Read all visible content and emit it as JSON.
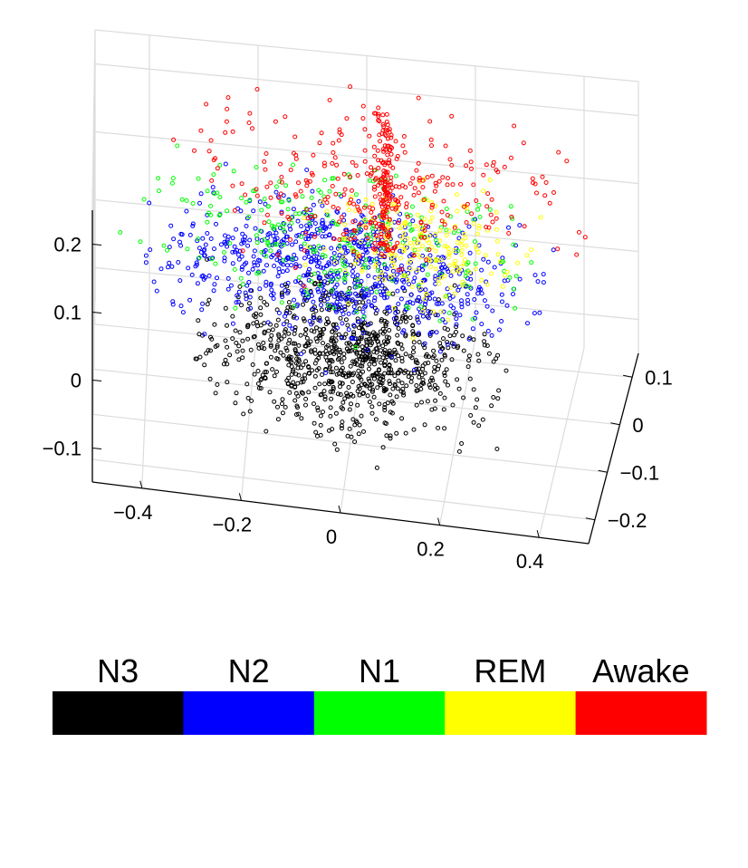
{
  "chart_data": {
    "type": "scatter",
    "dimensions": 3,
    "title": "",
    "xlabel": "",
    "ylabel": "",
    "zlabel": "",
    "grid": true,
    "x_ticks": [
      "−0.4",
      "−0.2",
      "0",
      "0.2",
      "0.4"
    ],
    "y_ticks": [
      "−0.2",
      "−0.1",
      "0",
      "0.1"
    ],
    "z_ticks": [
      "−0.1",
      "0",
      "0.1",
      "0.2"
    ],
    "xlim": [
      -0.5,
      0.5
    ],
    "ylim": [
      -0.25,
      0.15
    ],
    "zlim": [
      -0.15,
      0.25
    ],
    "marker": "open-circle",
    "series": [
      {
        "name": "N3",
        "color": "#000000",
        "x_range": [
          -0.3,
          0.3
        ],
        "y_range": [
          -0.25,
          0.05
        ],
        "z_range": [
          -0.1,
          0.05
        ]
      },
      {
        "name": "N2",
        "color": "#0000ff",
        "x_range": [
          -0.4,
          0.35
        ],
        "y_range": [
          -0.15,
          0.12
        ],
        "z_range": [
          -0.02,
          0.12
        ]
      },
      {
        "name": "N1",
        "color": "#00ff00",
        "x_range": [
          -0.45,
          0.4
        ],
        "y_range": [
          -0.15,
          0.15
        ],
        "z_range": [
          0.0,
          0.16
        ]
      },
      {
        "name": "REM",
        "color": "#ffff00",
        "x_range": [
          -0.1,
          0.35
        ],
        "y_range": [
          -0.1,
          0.12
        ],
        "z_range": [
          0.0,
          0.15
        ]
      },
      {
        "name": "Awake",
        "color": "#ff0000",
        "x_range": [
          -0.35,
          0.45
        ],
        "y_range": [
          -0.1,
          0.15
        ],
        "z_range": [
          0.05,
          0.25
        ]
      }
    ],
    "legend": {
      "placement": "bottom",
      "style": "colorbar",
      "labels": [
        "N3",
        "N2",
        "N1",
        "REM",
        "Awake"
      ],
      "colors": [
        "#000000",
        "#0000ff",
        "#00ff00",
        "#ffff00",
        "#ff0000"
      ]
    }
  }
}
